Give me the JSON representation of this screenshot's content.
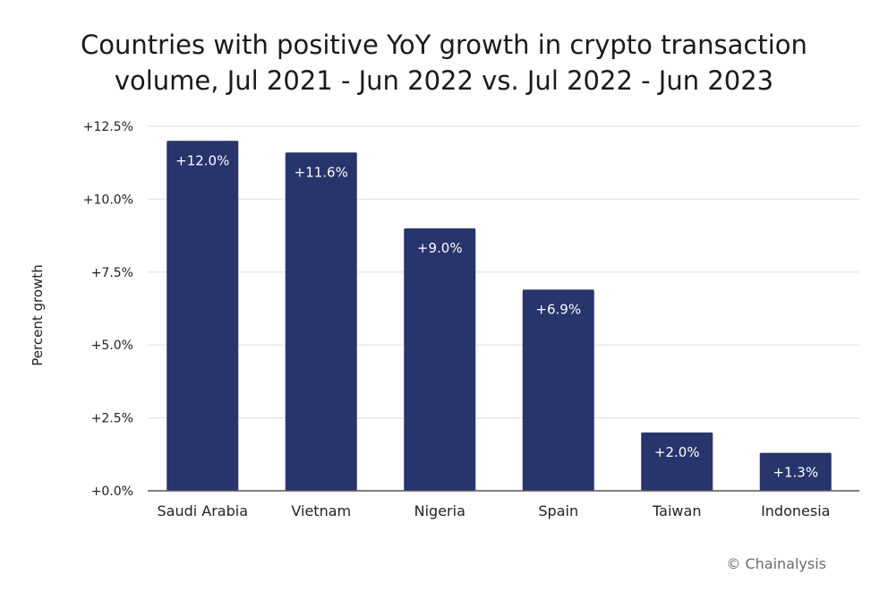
{
  "title_lines": [
    "Countries with positive YoY growth in crypto transaction",
    "volume, Jul 2021 - Jun 2022 vs. Jul 2022 - Jun 2023"
  ],
  "credit": "© Chainalysis",
  "colors": {
    "bar": "#28346c",
    "bar_label": "#ffffff",
    "grid": "#e4e4e4",
    "axis": "#555555",
    "text": "#222222"
  },
  "chart_data": {
    "type": "bar",
    "title": "Countries with positive YoY growth in crypto transaction volume, Jul 2021 - Jun 2022 vs. Jul 2022 - Jun 2023",
    "xlabel": "",
    "ylabel": "Percent growth",
    "categories": [
      "Saudi Arabia",
      "Vietnam",
      "Nigeria",
      "Spain",
      "Taiwan",
      "Indonesia"
    ],
    "values": [
      12.0,
      11.6,
      9.0,
      6.9,
      2.0,
      1.3
    ],
    "data_labels": [
      "+12.0%",
      "+11.6%",
      "+9.0%",
      "+6.9%",
      "+2.0%",
      "+1.3%"
    ],
    "ylim": [
      0,
      12.5
    ],
    "yticks": [
      0,
      2.5,
      5.0,
      7.5,
      10.0,
      12.5
    ],
    "ytick_labels": [
      "+0.0%",
      "+2.5%",
      "+5.0%",
      "+7.5%",
      "+10.0%",
      "+12.5%"
    ],
    "grid": true,
    "legend": "none"
  }
}
